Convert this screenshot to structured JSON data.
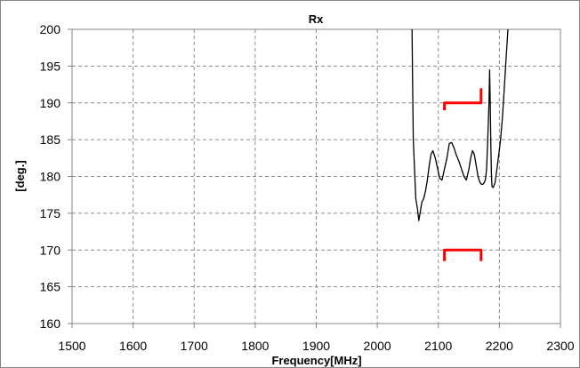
{
  "chart_data": {
    "type": "line",
    "title": "Rx",
    "xlabel": "Frequency[MHz]",
    "ylabel": "[deg.]",
    "xlim": [
      1500,
      2300
    ],
    "ylim": [
      160,
      200
    ],
    "x_ticks": [
      1500,
      1600,
      1700,
      1800,
      1900,
      2000,
      2100,
      2200,
      2300
    ],
    "y_ticks": [
      160,
      165,
      170,
      175,
      180,
      185,
      190,
      195,
      200
    ],
    "grid": true,
    "legend": "none",
    "series": [
      {
        "color": "#000000",
        "segments": [
          [
            [
              2057,
              200
            ],
            [
              2058,
              192
            ],
            [
              2059,
              185
            ],
            [
              2061,
              181
            ],
            [
              2063,
              177
            ],
            [
              2066,
              175.5
            ],
            [
              2068,
              174
            ],
            [
              2070,
              175
            ],
            [
              2073,
              176.5
            ],
            [
              2076,
              177
            ],
            [
              2079,
              178
            ],
            [
              2082,
              179.5
            ],
            [
              2085,
              181.5
            ],
            [
              2088,
              183
            ],
            [
              2091,
              183.5
            ],
            [
              2095,
              182.5
            ],
            [
              2099,
              181
            ],
            [
              2102,
              179.8
            ],
            [
              2106,
              179.5
            ],
            [
              2110,
              181
            ],
            [
              2114,
              182.5
            ],
            [
              2118,
              184.5
            ],
            [
              2122,
              184.6
            ],
            [
              2126,
              183.8
            ],
            [
              2130,
              182.8
            ],
            [
              2134,
              182
            ],
            [
              2138,
              181
            ],
            [
              2142,
              180
            ],
            [
              2146,
              179.5
            ],
            [
              2150,
              181
            ],
            [
              2153,
              182.5
            ],
            [
              2156,
              183.5
            ],
            [
              2159,
              183
            ],
            [
              2162,
              181.5
            ],
            [
              2165,
              180
            ],
            [
              2168,
              179.2
            ],
            [
              2171,
              178.9
            ],
            [
              2174,
              179
            ],
            [
              2177,
              179.5
            ],
            [
              2179,
              181
            ],
            [
              2181,
              185
            ],
            [
              2183,
              190
            ],
            [
              2184,
              194.5
            ],
            [
              2185,
              190
            ],
            [
              2186,
              184
            ],
            [
              2187,
              180
            ],
            [
              2188,
              178.6
            ],
            [
              2190,
              178.5
            ],
            [
              2193,
              179.2
            ],
            [
              2196,
              181
            ],
            [
              2199,
              183
            ],
            [
              2202,
              185
            ],
            [
              2205,
              188
            ],
            [
              2208,
              192
            ],
            [
              2211,
              196
            ],
            [
              2214,
              200
            ]
          ]
        ]
      },
      {
        "color": "#ff0000",
        "segments": [
          [
            [
              2110,
              189
            ],
            [
              2110,
              190
            ],
            [
              2170,
              190
            ],
            [
              2170,
              192
            ]
          ],
          [
            [
              2110,
              168.5
            ],
            [
              2110,
              170
            ],
            [
              2170,
              170
            ],
            [
              2170,
              168.5
            ]
          ]
        ]
      }
    ]
  }
}
